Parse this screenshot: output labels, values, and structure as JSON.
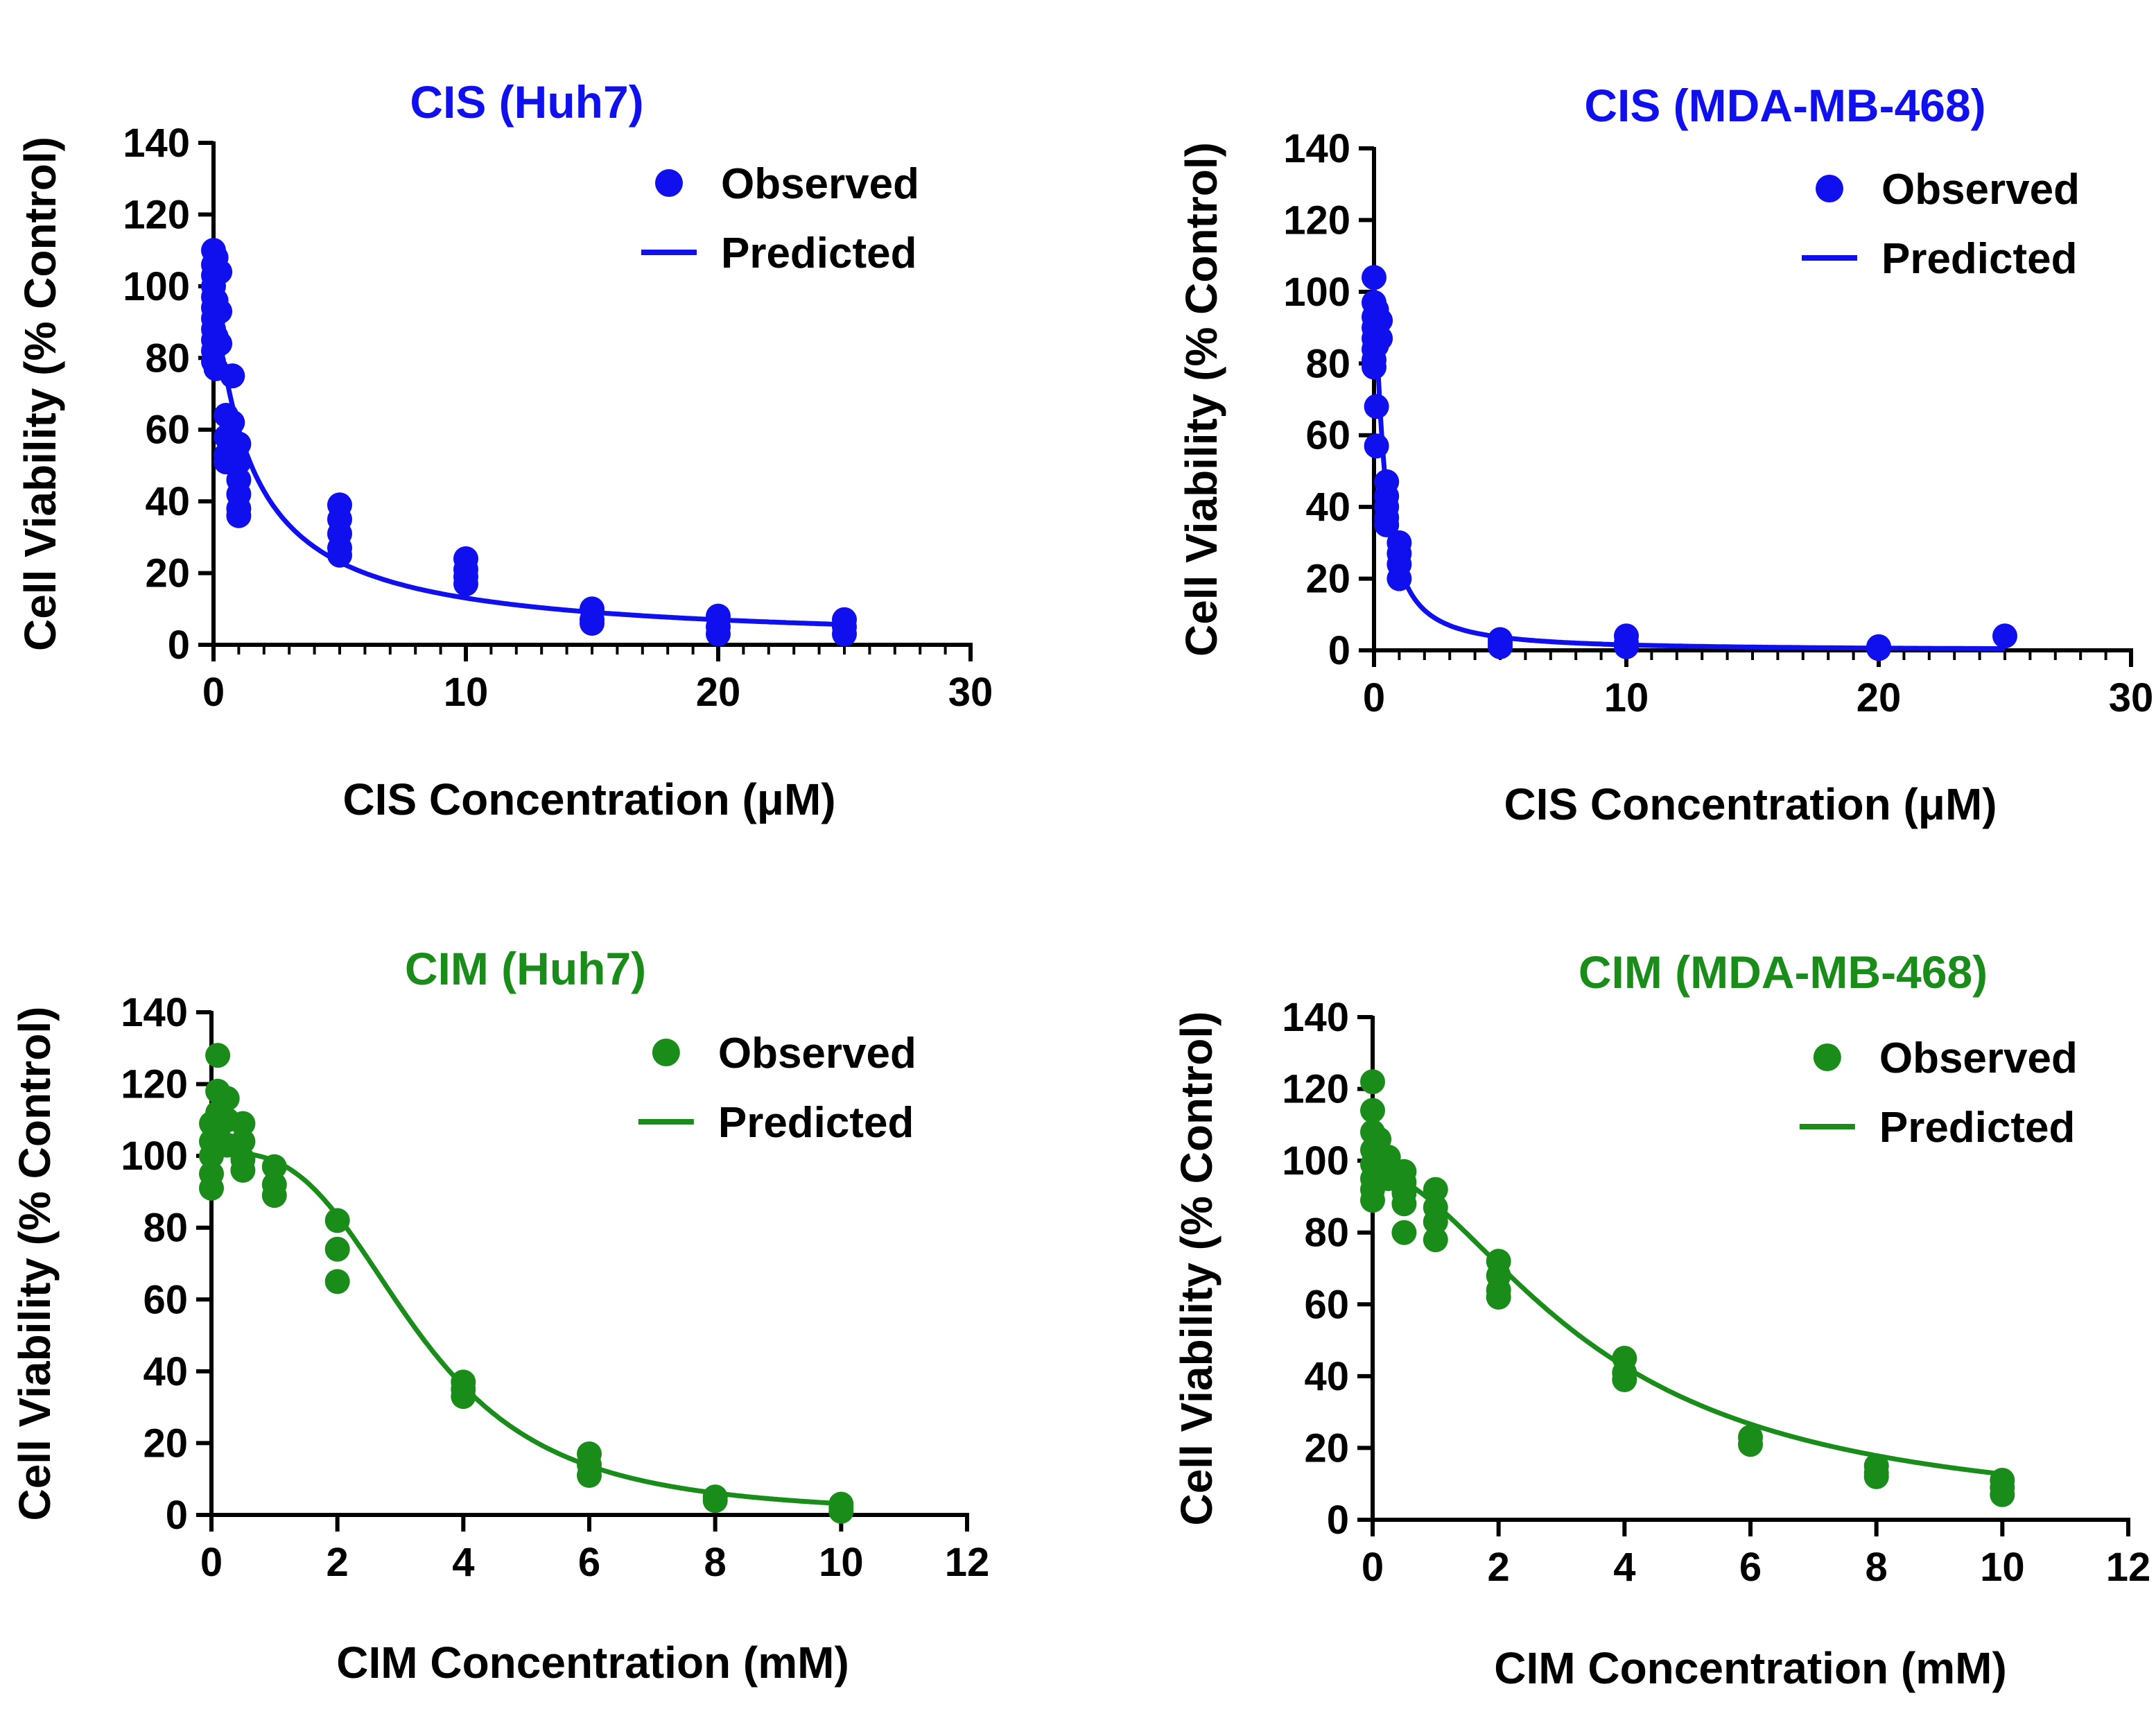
{
  "chart_data": [
    {
      "id": "cis-huh7",
      "type": "scatter",
      "title": "CIS (Huh7)",
      "xlabel": "CIS Concentration (μM)",
      "ylabel": "Cell Viability (% Control)",
      "color": "#1010ee",
      "xlim": [
        0,
        30
      ],
      "ylim": [
        0,
        140
      ],
      "xticks": [
        0,
        10,
        20,
        30
      ],
      "yticks": [
        0,
        20,
        40,
        60,
        80,
        100,
        120,
        140
      ],
      "xminor": 1,
      "legend": {
        "position": "top-right",
        "observed": "Observed",
        "predicted": "Predicted"
      },
      "series": [
        {
          "name": "Observed",
          "kind": "points",
          "points": [
            [
              0,
              110
            ],
            [
              0,
              106
            ],
            [
              0,
              103
            ],
            [
              0,
              100
            ],
            [
              0,
              97
            ],
            [
              0,
              94
            ],
            [
              0,
              91
            ],
            [
              0,
              88
            ],
            [
              0,
              85
            ],
            [
              0,
              82
            ],
            [
              0,
              79
            ],
            [
              0.1,
              108
            ],
            [
              0.1,
              96
            ],
            [
              0.1,
              86
            ],
            [
              0.1,
              77
            ],
            [
              0.25,
              104
            ],
            [
              0.25,
              93
            ],
            [
              0.25,
              84
            ],
            [
              0.5,
              64
            ],
            [
              0.5,
              58
            ],
            [
              0.5,
              53
            ],
            [
              0.5,
              51
            ],
            [
              0.75,
              75
            ],
            [
              0.75,
              62
            ],
            [
              1,
              56
            ],
            [
              1,
              51
            ],
            [
              1,
              46
            ],
            [
              1,
              42
            ],
            [
              1,
              38
            ],
            [
              1,
              36
            ],
            [
              5,
              39
            ],
            [
              5,
              35
            ],
            [
              5,
              31
            ],
            [
              5,
              27
            ],
            [
              5,
              25
            ],
            [
              10,
              24
            ],
            [
              10,
              21
            ],
            [
              10,
              19
            ],
            [
              10,
              17
            ],
            [
              15,
              10
            ],
            [
              15,
              7
            ],
            [
              15,
              6
            ],
            [
              20,
              8
            ],
            [
              20,
              5
            ],
            [
              20,
              3
            ],
            [
              25,
              7
            ],
            [
              25,
              5
            ],
            [
              25,
              3
            ]
          ]
        },
        {
          "name": "Predicted",
          "kind": "curve",
          "model": "hill",
          "top": 100,
          "bottom": 0,
          "ic50": 1.5,
          "hill": 1.0,
          "xstart": 0.4,
          "xend": 25
        }
      ]
    },
    {
      "id": "cis-mda",
      "type": "scatter",
      "title": "CIS (MDA-MB-468)",
      "xlabel": "CIS Concentration (μM)",
      "ylabel": "Cell Viability (% Control)",
      "color": "#1010ee",
      "xlim": [
        0,
        30
      ],
      "ylim": [
        0,
        140
      ],
      "xticks": [
        0,
        10,
        20,
        30
      ],
      "yticks": [
        0,
        20,
        40,
        60,
        80,
        100,
        120,
        140
      ],
      "xminor": 1,
      "legend": {
        "position": "top-right",
        "observed": "Observed",
        "predicted": "Predicted"
      },
      "series": [
        {
          "name": "Observed",
          "kind": "points",
          "points": [
            [
              0,
              104
            ],
            [
              0,
              97
            ],
            [
              0,
              93
            ],
            [
              0,
              90
            ],
            [
              0,
              87
            ],
            [
              0,
              84
            ],
            [
              0,
              81
            ],
            [
              0,
              79
            ],
            [
              0.1,
              95
            ],
            [
              0.1,
              89
            ],
            [
              0.1,
              85
            ],
            [
              0.25,
              92
            ],
            [
              0.25,
              87
            ],
            [
              0.1,
              68
            ],
            [
              0.1,
              57
            ],
            [
              0.5,
              47
            ],
            [
              0.5,
              43
            ],
            [
              0.5,
              40
            ],
            [
              0.5,
              37
            ],
            [
              0.5,
              35
            ],
            [
              1,
              30
            ],
            [
              1,
              27
            ],
            [
              1,
              24
            ],
            [
              1,
              20
            ],
            [
              5,
              3
            ],
            [
              5,
              2
            ],
            [
              5,
              1
            ],
            [
              10,
              4
            ],
            [
              10,
              2
            ],
            [
              10,
              1
            ],
            [
              20,
              1
            ],
            [
              20,
              0.5
            ],
            [
              25,
              4
            ]
          ]
        },
        {
          "name": "Predicted",
          "kind": "curve",
          "model": "hill",
          "top": 102,
          "bottom": 0,
          "ic50": 0.4,
          "hill": 1.3,
          "xstart": 0,
          "xend": 25
        }
      ]
    },
    {
      "id": "cim-huh7",
      "type": "scatter",
      "title": "CIM (Huh7)",
      "xlabel": "CIM Concentration (mM)",
      "ylabel": "Cell Viability (% Control)",
      "color": "#1a8c1a",
      "xlim": [
        0,
        12
      ],
      "ylim": [
        0,
        140
      ],
      "xticks": [
        0,
        2,
        4,
        6,
        8,
        10,
        12
      ],
      "yticks": [
        0,
        20,
        40,
        60,
        80,
        100,
        120,
        140
      ],
      "xminor": 0,
      "legend": {
        "position": "top-right",
        "observed": "Observed",
        "predicted": "Predicted"
      },
      "series": [
        {
          "name": "Observed",
          "kind": "points",
          "points": [
            [
              0,
              109
            ],
            [
              0,
              104
            ],
            [
              0,
              100
            ],
            [
              0,
              95
            ],
            [
              0,
              91
            ],
            [
              0.1,
              128
            ],
            [
              0.1,
              118
            ],
            [
              0.1,
              112
            ],
            [
              0.1,
              106
            ],
            [
              0.25,
              116
            ],
            [
              0.25,
              110
            ],
            [
              0.25,
              103
            ],
            [
              0.5,
              109
            ],
            [
              0.5,
              104
            ],
            [
              0.5,
              99
            ],
            [
              0.5,
              96
            ],
            [
              1,
              97
            ],
            [
              1,
              92
            ],
            [
              1,
              89
            ],
            [
              2,
              82
            ],
            [
              2,
              74
            ],
            [
              2,
              65
            ],
            [
              4,
              37
            ],
            [
              4,
              35
            ],
            [
              4,
              33
            ],
            [
              6,
              17
            ],
            [
              6,
              14
            ],
            [
              6,
              11
            ],
            [
              8,
              5
            ],
            [
              8,
              4
            ],
            [
              10,
              3
            ],
            [
              10,
              2
            ],
            [
              10,
              1
            ]
          ]
        },
        {
          "name": "Predicted",
          "kind": "curve",
          "model": "hill",
          "top": 101,
          "bottom": 0,
          "ic50": 3.3,
          "hill": 3.1,
          "xstart": 0,
          "xend": 10
        }
      ]
    },
    {
      "id": "cim-mda",
      "type": "scatter",
      "title": "CIM (MDA-MB-468)",
      "xlabel": "CIM Concentration (mM)",
      "ylabel": "Cell Viability (% Control)",
      "color": "#1a8c1a",
      "xlim": [
        0,
        12
      ],
      "ylim": [
        0,
        140
      ],
      "xticks": [
        0,
        2,
        4,
        6,
        8,
        10,
        12
      ],
      "yticks": [
        0,
        20,
        40,
        60,
        80,
        100,
        120,
        140
      ],
      "xminor": 0,
      "legend": {
        "position": "top-right",
        "observed": "Observed",
        "predicted": "Predicted"
      },
      "series": [
        {
          "name": "Observed",
          "kind": "points",
          "points": [
            [
              0,
              122
            ],
            [
              0,
              114
            ],
            [
              0,
              108
            ],
            [
              0,
              103
            ],
            [
              0,
              99
            ],
            [
              0,
              95
            ],
            [
              0,
              92
            ],
            [
              0,
              89
            ],
            [
              0.1,
              106
            ],
            [
              0.1,
              100
            ],
            [
              0.1,
              96
            ],
            [
              0.25,
              101
            ],
            [
              0.25,
              95
            ],
            [
              0.5,
              97
            ],
            [
              0.5,
              94
            ],
            [
              0.5,
              91
            ],
            [
              0.5,
              88
            ],
            [
              0.5,
              80
            ],
            [
              1,
              92
            ],
            [
              1,
              87
            ],
            [
              1,
              83
            ],
            [
              1,
              78
            ],
            [
              2,
              72
            ],
            [
              2,
              68
            ],
            [
              2,
              64
            ],
            [
              2,
              62
            ],
            [
              4,
              45
            ],
            [
              4,
              41
            ],
            [
              4,
              39
            ],
            [
              6,
              23
            ],
            [
              6,
              21
            ],
            [
              8,
              15
            ],
            [
              8,
              13
            ],
            [
              8,
              12
            ],
            [
              10,
              11
            ],
            [
              10,
              9
            ],
            [
              10,
              7
            ]
          ]
        },
        {
          "name": "Predicted",
          "kind": "curve",
          "model": "hill",
          "top": 97,
          "bottom": 0,
          "ic50": 3.5,
          "hill": 1.8,
          "xstart": 0,
          "xend": 10
        }
      ]
    }
  ]
}
